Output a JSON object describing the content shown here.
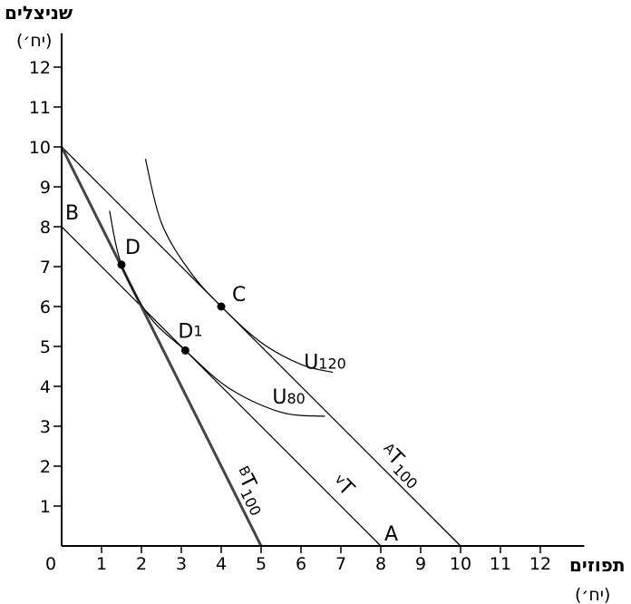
{
  "chart_data": {
    "type": "line",
    "y_axis": {
      "title": "שניצלים",
      "unit": "(יח׳)",
      "ticks": [
        1,
        2,
        3,
        4,
        5,
        6,
        7,
        8,
        9,
        10,
        11,
        12
      ],
      "range": [
        0,
        12
      ]
    },
    "x_axis": {
      "title": "תפוזים",
      "unit": "(יח׳)",
      "ticks": [
        0,
        1,
        2,
        3,
        4,
        5,
        6,
        7,
        8,
        9,
        10,
        11,
        12
      ],
      "range": [
        0,
        12
      ]
    },
    "budget_lines": [
      {
        "name": "AT100",
        "base": "T",
        "prefix": "A",
        "sub": "100",
        "from": [
          0,
          10
        ],
        "to": [
          10,
          0
        ]
      },
      {
        "name": "vT",
        "base": "T",
        "prefix": "v",
        "sub": "",
        "from": [
          0,
          8
        ],
        "to": [
          8,
          0
        ]
      },
      {
        "name": "BT100",
        "base": "T",
        "prefix": "B",
        "sub": "100",
        "from": [
          0,
          10
        ],
        "to": [
          5,
          0
        ]
      }
    ],
    "indifference_curves": [
      {
        "name": "U120",
        "base": "U",
        "sub": "120",
        "points": [
          [
            2.1,
            9.7
          ],
          [
            2.5,
            8.1
          ],
          [
            3.2,
            6.9
          ],
          [
            4.0,
            6.0
          ],
          [
            5.0,
            5.1
          ],
          [
            6.0,
            4.55
          ],
          [
            6.8,
            4.35
          ]
        ]
      },
      {
        "name": "U80",
        "base": "U",
        "sub": "80",
        "points": [
          [
            1.2,
            8.4
          ],
          [
            1.5,
            7.05
          ],
          [
            2.2,
            5.75
          ],
          [
            3.1,
            4.9
          ],
          [
            4.2,
            3.95
          ],
          [
            5.5,
            3.35
          ],
          [
            6.6,
            3.25
          ]
        ]
      }
    ],
    "points": [
      {
        "label": "D",
        "sub": "",
        "x": 1.5,
        "y": 7.05
      },
      {
        "label": "C",
        "sub": "",
        "x": 4.0,
        "y": 6.0
      },
      {
        "label": "D",
        "sub": "1",
        "x": 3.1,
        "y": 4.9
      }
    ],
    "annotations": [
      {
        "text": "B",
        "at": [
          0,
          8
        ]
      },
      {
        "text": "A",
        "at": [
          8,
          0
        ]
      }
    ]
  }
}
